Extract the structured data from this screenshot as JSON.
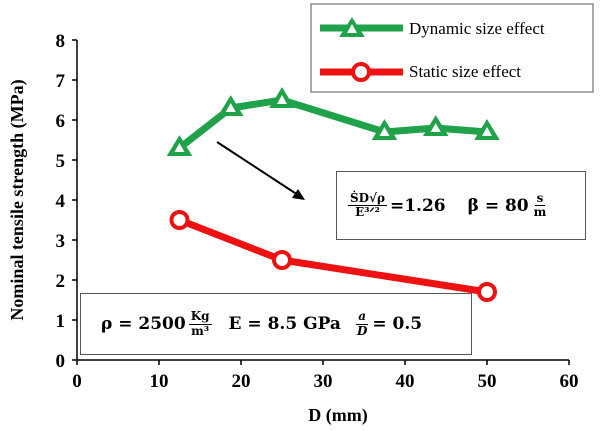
{
  "chart_data": {
    "type": "line",
    "xlabel": "D (mm)",
    "ylabel": "Nominal  tensile strength (MPa)",
    "xlim": [
      0,
      60
    ],
    "ylim": [
      0,
      8
    ],
    "xticks": [
      "0",
      "10",
      "20",
      "30",
      "40",
      "50",
      "60"
    ],
    "yticks": [
      "0",
      "1",
      "2",
      "3",
      "4",
      "5",
      "6",
      "7",
      "8"
    ],
    "grid": false,
    "legend_position": "top-right",
    "series": [
      {
        "name": "Dynamic size effect",
        "color": "#1fa24a",
        "marker": "triangle",
        "x": [
          12.5,
          18.75,
          25,
          37.5,
          43.75,
          50
        ],
        "y": [
          5.3,
          6.3,
          6.5,
          5.7,
          5.8,
          5.7
        ]
      },
      {
        "name": "Static size effect",
        "color": "#ee1111",
        "marker": "circle",
        "x": [
          12.5,
          25,
          50
        ],
        "y": [
          3.5,
          2.5,
          1.7
        ]
      }
    ],
    "annotations": {
      "params_box": {
        "rho_label": "ρ = 2500",
        "rho_unit_num": "Kg",
        "rho_unit_den": "m³",
        "e_label": "E = 8.5 GPa",
        "ratio_num": "a",
        "ratio_den": "D",
        "ratio_value": "= 0.5"
      },
      "formula_box": {
        "num": "ṠD√ρ",
        "den": "E³ᐟ²",
        "value": "=1.26",
        "beta_label": "β = 80",
        "beta_unit_num": "s",
        "beta_unit_den": "m"
      }
    }
  }
}
